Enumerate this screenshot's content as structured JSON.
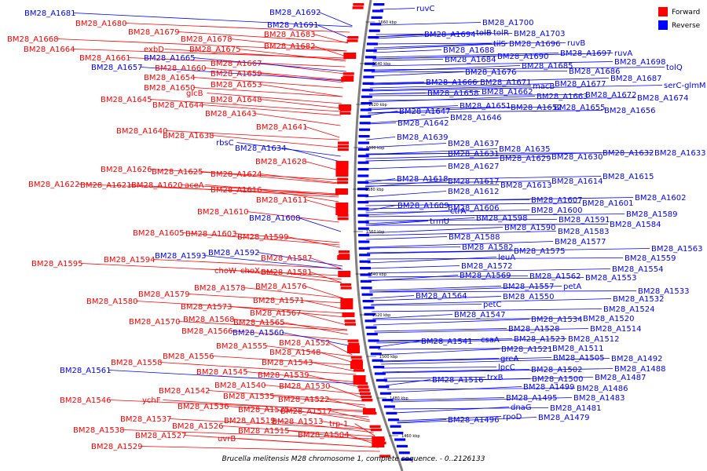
{
  "caption": "Brucella melitensis M28 chromosome 1, complete sequence. - 0..2126133",
  "legend": {
    "items": [
      {
        "label": "Forward",
        "color": "#ff0000"
      },
      {
        "label": "Reverse",
        "color": "#0000ff"
      }
    ]
  },
  "colors": {
    "forward": "#ff0000",
    "reverse": "#0000ff",
    "backbone": "#808080"
  },
  "ticks": [
    "1660 kbp",
    "1640 kbp",
    "1620 kbp",
    "1600 kbp",
    "1580 kbp",
    "1560 kbp",
    "1540 kbp",
    "1520 kbp",
    "1500 kbp",
    "1480 kbp",
    "1460 kbp"
  ],
  "forward_labels": [
    "BM28_A1680",
    "BM28_A1679",
    "BM28_A1678",
    "BM28_A1683",
    "BM28_A1682",
    "BM28_A1668",
    "BM28_A1664",
    "exbD",
    "BM28_A1675",
    "BM28_A1661",
    "BM28_A1667",
    "BM28_A1660",
    "BM28_A1659",
    "BM28_A1654",
    "BM28_A1653",
    "BM28_A1650",
    "glcB",
    "BM28_A1645",
    "BM28_A1648",
    "BM28_A1644",
    "BM28_A1643",
    "BM28_A1640",
    "BM28_A1641",
    "BM28_A1638",
    "BM28_A1628",
    "BM28_A1626",
    "BM28_A1625",
    "BM28_A1624",
    "BM28_A1622",
    "BM28_A1621",
    "BM28_A1620",
    "aceA",
    "BM28_A1616",
    "BM28_A1611",
    "BM28_A1610",
    "BM28_A1605",
    "BM28_A1603",
    "BM28_A1599",
    "BM28_A1595",
    "BM28_A1594",
    "BM28_A1587",
    "choW",
    "choX",
    "BM28_A1581",
    "BM28_A1576",
    "BM28_A1579",
    "BM28_A1578",
    "BM28_A1580",
    "BM28_A1571",
    "BM28_A1573",
    "BM28_A1567",
    "BM28_A1570",
    "BM28_A1568",
    "BM28_A1565",
    "BM28_A1566",
    "BM28_A1555",
    "BM28_A1552",
    "BM28_A1556",
    "BM28_A1548",
    "BM28_A1558",
    "BM28_A1543",
    "BM28_A1545",
    "BM28_A1539",
    "BM28_A1540",
    "BM28_A1542",
    "BM28_A1530",
    "BM28_A1535",
    "BM28_A1546",
    "ychF",
    "BM28_A1522",
    "BM28_A1536",
    "BM28_A1525",
    "BM28_A1517",
    "BM28_A1537",
    "BM28_A1519",
    "BM28_A1513",
    "BM28_A1526",
    "trp-1",
    "BM28_A1538",
    "BM28_A1515",
    "BM28_A1527",
    "uvrB",
    "BM28_A1504",
    "BM28_A1529"
  ],
  "reverse_labels_left": [
    "BM28_A1681",
    "BM28_A1692",
    "BM28_A1691",
    "BM28_A1665",
    "BM28_A1657",
    "rbsC",
    "BM28_A1634",
    "BM28_A1608",
    "BM28_A1593",
    "BM28_A1592",
    "BM28_A1560",
    "BM28_A1561"
  ],
  "reverse_labels_right": [
    "ruvC",
    "BM28_A1700",
    "tolB",
    "tolR",
    "BM28_A1703",
    "BM28_A1694",
    "tilS",
    "BM28_A1696",
    "ruvB",
    "BM28_A1688",
    "BM28_A1697",
    "ruvA",
    "BM28_A1684",
    "BM28_A1690",
    "BM28_A1698",
    "BM28_A1685",
    "BM28_A1686",
    "tolQ",
    "BM28_A1676",
    "BM28_A1687",
    "BM28_A1666",
    "BM28_A1671",
    "BM28_A1677",
    "serC-glmM",
    "BM28_A1658",
    "BM28_A1662",
    "macB",
    "BM28_A1663",
    "BM28_A1672",
    "BM28_A1674",
    "BM28_A1651",
    "BM28_A1652",
    "BM28_A1655",
    "BM28_A1656",
    "BM28_A1647",
    "BM28_A1646",
    "BM28_A1642",
    "BM28_A1639",
    "BM28_A1637",
    "BM28_A1635",
    "BM28_A1631",
    "BM28_A1629",
    "BM28_A1630",
    "BM28_A1632",
    "BM28_A1633",
    "BM28_A1627",
    "BM28_A1618",
    "BM28_A1617",
    "BM28_A1613",
    "BM28_A1614",
    "BM28_A1615",
    "BM28_A1612",
    "BM28_A1607",
    "BM28_A1601",
    "BM28_A1602",
    "BM28_A1609",
    "BM28_A1606",
    "BM28_A1600",
    "ctrA",
    "BM28_A1598",
    "BM28_A1591",
    "BM28_A1589",
    "trmU",
    "BM28_A1590",
    "BM28_A1584",
    "BM28_A1588",
    "BM28_A1583",
    "BM28_A1577",
    "BM28_A1582",
    "BM28_A1575",
    "BM28_A1563",
    "leuA",
    "BM28_A1559",
    "BM28_A1572",
    "BM28_A1554",
    "BM28_A1569",
    "BM28_A1562",
    "BM28_A1553",
    "BM28_A1557",
    "petA",
    "BM28_A1533",
    "BM28_A1564",
    "BM28_A1550",
    "BM28_A1532",
    "petC",
    "BM28_A1524",
    "BM28_A1547",
    "BM28_A1534",
    "BM28_A1520",
    "BM28_A1528",
    "BM28_A1514",
    "BM28_A1541",
    "csaA",
    "BM28_A1523",
    "BM28_A1512",
    "BM28_A1521",
    "BM28_A1511",
    "greA",
    "BM28_A1505",
    "BM28_A1492",
    "lpcC",
    "BM28_A1502",
    "BM28_A1488",
    "BM28_A1516",
    "trxB",
    "BM28_A1500",
    "BM28_A1487",
    "BM28_A1499",
    "BM28_A1486",
    "BM28_A1495",
    "BM28_A1483",
    "dnaG",
    "BM28_A1481",
    "BM28_A1496",
    "rpoD",
    "BM28_A1479"
  ]
}
